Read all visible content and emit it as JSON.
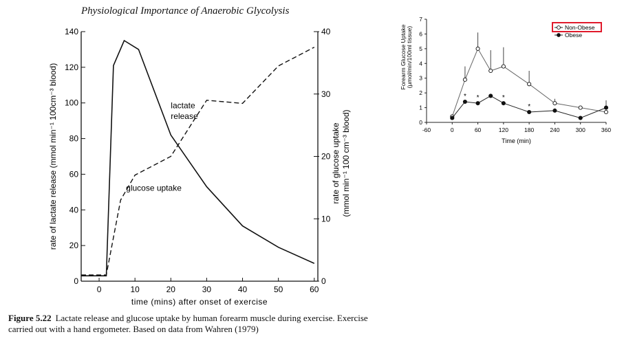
{
  "header": {
    "title": "Physiological Importance of Anaerobic Glycolysis"
  },
  "caption": {
    "label": "Figure 5.22",
    "text": "Lactate release and glucose uptake by human forearm muscle during exercise. Exercise carried out with a hand ergometer. Based on data from Wahren (1979)"
  },
  "chart_data": [
    {
      "type": "line",
      "xlabel": "time (mins) after onset of exercise",
      "ylabel": "rate of lactate release (mmol min⁻¹ 100cm⁻³ blood)",
      "y2label": "rate of glucose uptake (mmol min⁻¹ 100 cm⁻³ blood)",
      "xlim": [
        -5,
        61
      ],
      "ylim": [
        0,
        140
      ],
      "y2lim": [
        0,
        40
      ],
      "xticks": [
        "0",
        "10",
        "20",
        "30",
        "40",
        "50",
        "60"
      ],
      "yticks": [
        "0",
        "20",
        "40",
        "60",
        "80",
        "100",
        "120",
        "140"
      ],
      "y2ticks": [
        "0",
        "10",
        "20",
        "30",
        "40"
      ],
      "grid": false,
      "series": [
        {
          "name": "lactate release",
          "axis": "left",
          "style": "solid",
          "x": [
            -5,
            0,
            2,
            4,
            7,
            11,
            20,
            30,
            40,
            50,
            60
          ],
          "y": [
            3,
            3,
            3,
            121,
            135,
            130,
            82,
            53,
            31,
            19,
            10
          ]
        },
        {
          "name": "glucose uptake",
          "axis": "right",
          "style": "dashed",
          "x": [
            -5,
            0,
            2,
            6,
            10,
            20,
            30,
            40,
            50,
            60
          ],
          "y": [
            1,
            1,
            1,
            13,
            17,
            20,
            29,
            28.5,
            34.5,
            37.5
          ]
        }
      ]
    },
    {
      "type": "line",
      "xlabel": "Time (min)",
      "ylabel": "Forearm Glucose Uptake (µmol/min/100ml tissue)",
      "xlim": [
        -60,
        360
      ],
      "ylim": [
        0,
        7
      ],
      "xticks": [
        "-60",
        "0",
        "60",
        "120",
        "180",
        "240",
        "300",
        "360"
      ],
      "yticks": [
        "0",
        "1",
        "2",
        "3",
        "4",
        "5",
        "6",
        "7"
      ],
      "grid": false,
      "legend": "top-right",
      "series": [
        {
          "name": "Non-Obese",
          "marker": "open-circle",
          "x": [
            0,
            30,
            60,
            90,
            120,
            180,
            240,
            300,
            360
          ],
          "y": [
            0.4,
            2.9,
            5.0,
            3.5,
            3.8,
            2.6,
            1.3,
            1.0,
            0.7
          ],
          "err": [
            0,
            0.9,
            1.1,
            1.4,
            1.3,
            0.9,
            0.3,
            0,
            0
          ]
        },
        {
          "name": "Obese",
          "marker": "filled-circle",
          "x": [
            0,
            30,
            60,
            90,
            120,
            180,
            240,
            300,
            360
          ],
          "y": [
            0.3,
            1.4,
            1.3,
            1.8,
            1.3,
            0.7,
            0.8,
            0.3,
            1.0
          ],
          "err": [
            0,
            0,
            0,
            0,
            0,
            0,
            0,
            0,
            0.5
          ]
        }
      ],
      "annotations": [
        "*",
        "*",
        "*",
        "*"
      ],
      "annotation_x": [
        30,
        60,
        120,
        180
      ],
      "highlight": "Non-Obese",
      "highlight_color": "#e0192b"
    }
  ]
}
